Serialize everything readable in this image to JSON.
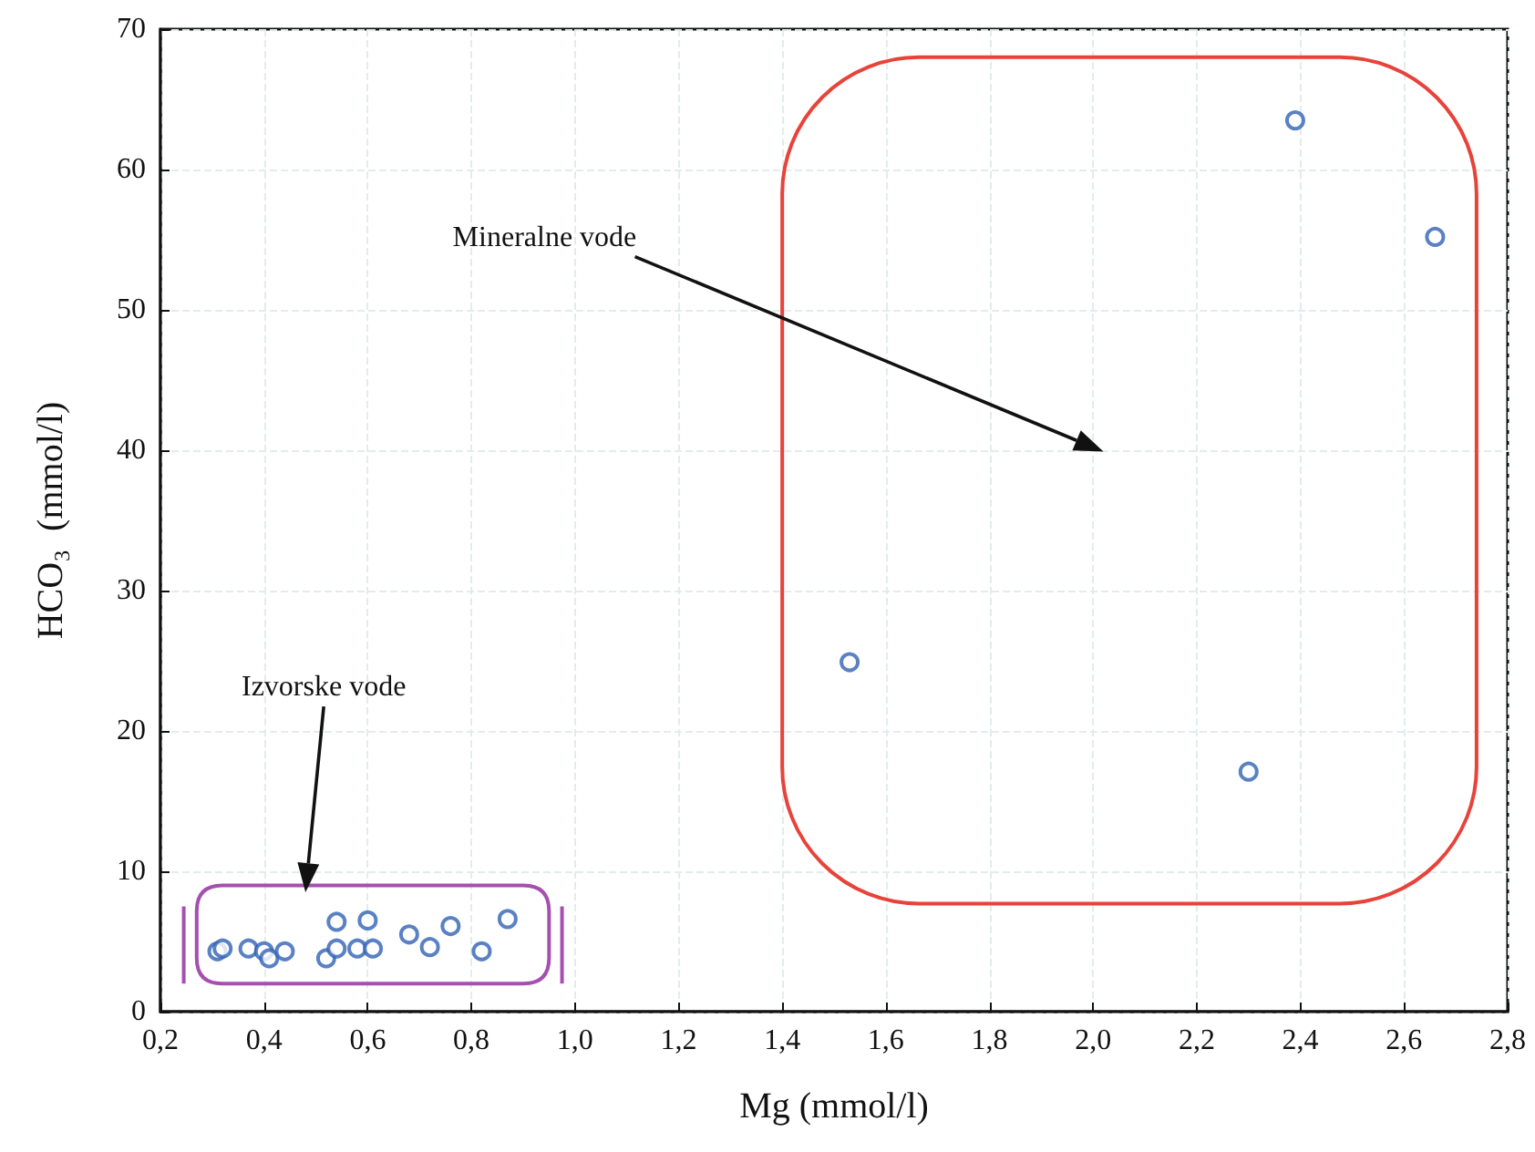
{
  "chart_data": {
    "type": "scatter",
    "xlabel": "Mg (mmol/l)",
    "ylabel": "HCO₃  (mmol/l)",
    "series": [
      {
        "color": "#2f62b5",
        "x": [
          0.31,
          0.32,
          0.37,
          0.4,
          0.41,
          0.44,
          0.52,
          0.54,
          0.54,
          0.58,
          0.6,
          0.61,
          0.68,
          0.72,
          0.76,
          0.82,
          0.87,
          1.53,
          2.3,
          2.39,
          2.66
        ],
        "values": [
          4.3,
          4.5,
          4.5,
          4.3,
          3.8,
          4.3,
          3.8,
          4.5,
          6.4,
          4.5,
          6.5,
          4.5,
          5.5,
          4.6,
          6.1,
          4.3,
          6.6,
          24.9,
          17.1,
          63.5,
          55.2
        ]
      }
    ],
    "xlim": [
      0.2,
      2.8
    ],
    "ylim": [
      0,
      70
    ],
    "xticks": [
      {
        "value": 0.2,
        "label": "0,2"
      },
      {
        "value": 0.4,
        "label": "0,4"
      },
      {
        "value": 0.6,
        "label": "0,6"
      },
      {
        "value": 0.8,
        "label": "0,8"
      },
      {
        "value": 1.0,
        "label": "1,0"
      },
      {
        "value": 1.2,
        "label": "1,2"
      },
      {
        "value": 1.4,
        "label": "1,4"
      },
      {
        "value": 1.6,
        "label": "1,6"
      },
      {
        "value": 1.8,
        "label": "1,8"
      },
      {
        "value": 2.0,
        "label": "2,0"
      },
      {
        "value": 2.2,
        "label": "2,2"
      },
      {
        "value": 2.4,
        "label": "2,4"
      },
      {
        "value": 2.6,
        "label": "2,6"
      },
      {
        "value": 2.8,
        "label": "2,8"
      }
    ],
    "yticks": [
      0,
      10,
      20,
      30,
      40,
      50,
      60,
      70
    ],
    "annotations": [
      "Mineralne vode",
      "Izvorske vode"
    ],
    "grid": true,
    "marker": "circle"
  }
}
